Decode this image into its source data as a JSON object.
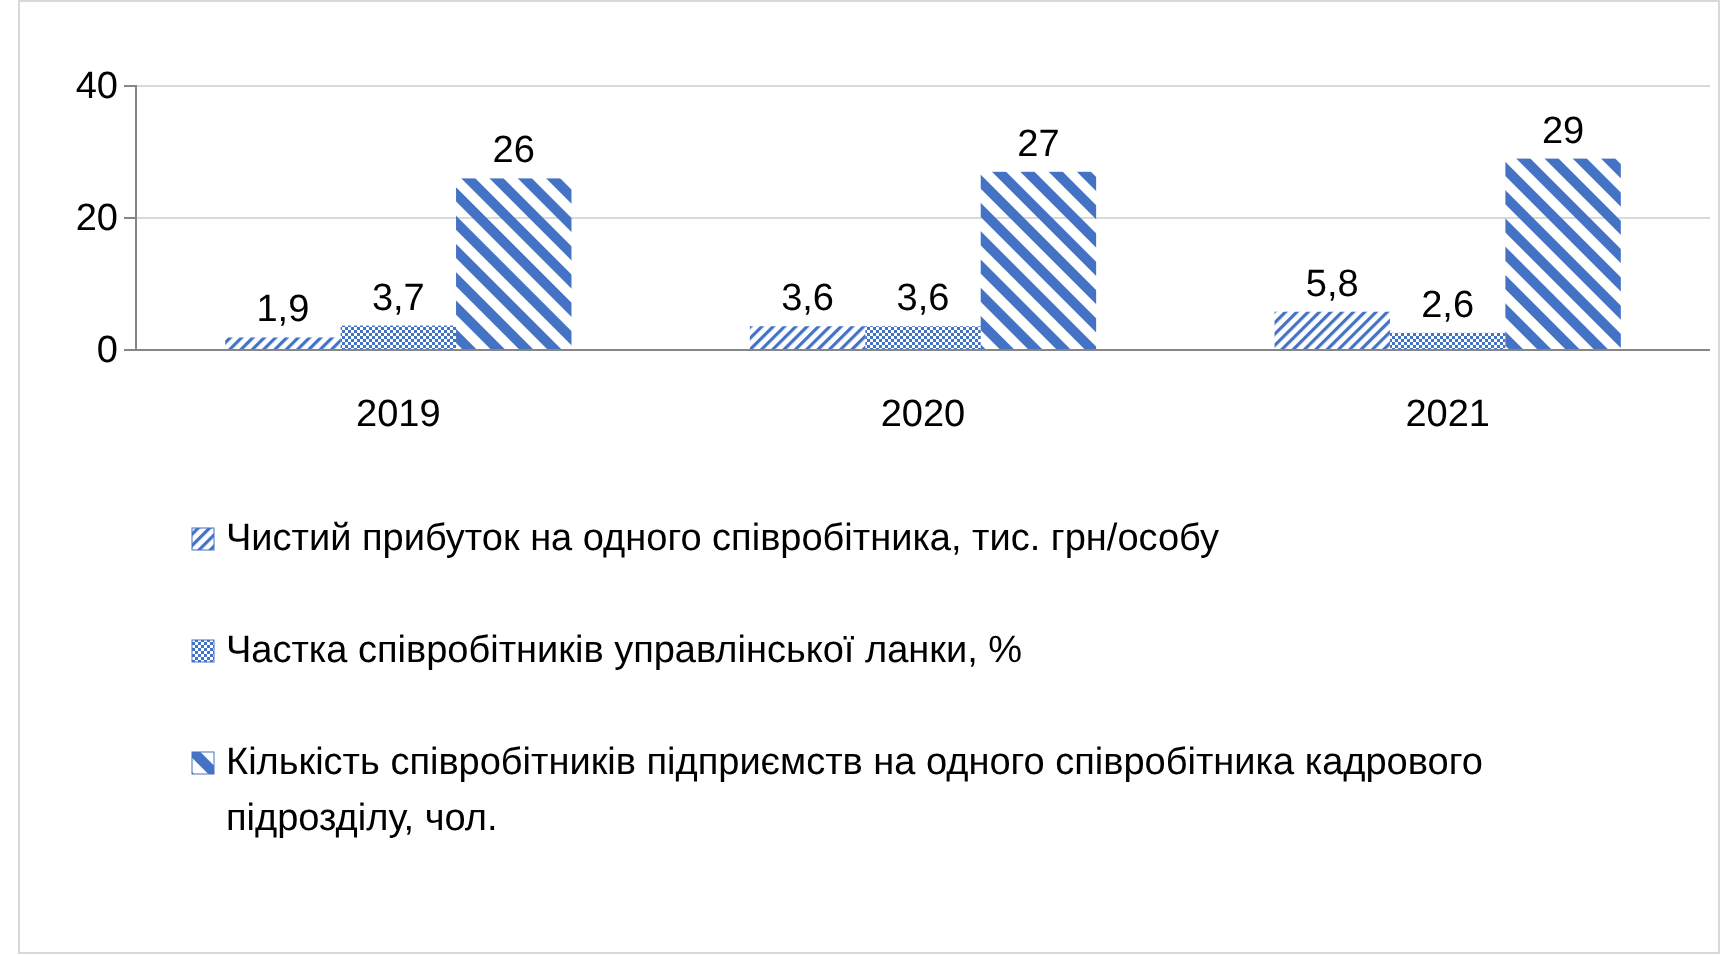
{
  "chart_data": {
    "type": "bar",
    "categories": [
      "2019",
      "2020",
      "2021"
    ],
    "series": [
      {
        "name": "Чистий прибуток на одного співробітника, тис. грн/особу",
        "color": "#4472c4",
        "values": [
          1.9,
          3.6,
          5.8
        ],
        "value_labels": [
          "1,9",
          "3,6",
          "5,8"
        ]
      },
      {
        "name": "Частка співробітників управлінської ланки, %",
        "color": "#4472c4",
        "values": [
          3.7,
          3.6,
          2.6
        ],
        "value_labels": [
          "3,7",
          "3,6",
          "2,6"
        ]
      },
      {
        "name": "Кількість співробітників підприємств на одного співробітника кадрового підрозділу, чол.",
        "color": "#4472c4",
        "values": [
          26,
          27,
          29
        ],
        "value_labels": [
          "26",
          "27",
          "29"
        ]
      }
    ],
    "ylim": [
      0,
      40
    ],
    "yticks": [
      0,
      20,
      40
    ],
    "grid": "y",
    "legend": "bottom"
  }
}
